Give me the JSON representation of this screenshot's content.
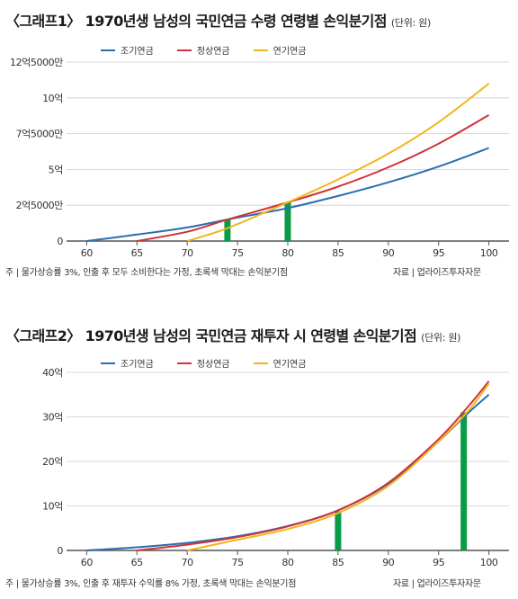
{
  "colors": {
    "early": "#2a6db0",
    "normal": "#d0323a",
    "deferred": "#f2b51c",
    "breakeven": "#0a9b46",
    "axis": "#555555",
    "grid": "#cccccc"
  },
  "chart_data": [
    {
      "type": "line",
      "title_main": "〈그래프1〉 1970년생 남성의 국민연금 수령 연령별 손익분기점",
      "title_unit": "(단위: 원)",
      "legend_position": "top-center",
      "grid": "horizontal",
      "xlim": [
        58,
        102
      ],
      "ylim": [
        0,
        125000
      ],
      "x_ticks": [
        60,
        65,
        70,
        75,
        80,
        85,
        90,
        95,
        100
      ],
      "y_ticks": [
        0,
        25000,
        50000,
        75000,
        100000,
        125000
      ],
      "y_tick_labels": [
        "0",
        "2억5000만",
        "5억",
        "7억5000만",
        "10억",
        "12억5000만"
      ],
      "series": [
        {
          "name": "조기연금",
          "color_key": "early",
          "x": [
            60,
            65,
            70,
            74,
            80,
            85,
            90,
            95,
            100
          ],
          "y": [
            0,
            4500,
            9500,
            15000,
            23000,
            31500,
            41000,
            52000,
            65000
          ]
        },
        {
          "name": "정상연금",
          "color_key": "normal",
          "x": [
            65,
            70,
            74,
            80,
            85,
            90,
            95,
            100
          ],
          "y": [
            0,
            6500,
            15000,
            27000,
            38000,
            51500,
            68000,
            88000
          ]
        },
        {
          "name": "연기연금",
          "color_key": "deferred",
          "x": [
            70,
            74,
            80,
            85,
            90,
            95,
            100
          ],
          "y": [
            0,
            9000,
            27000,
            43000,
            61000,
            83000,
            110000
          ]
        }
      ],
      "breakeven_bars": [
        {
          "x": 74,
          "y": 15000
        },
        {
          "x": 80,
          "y": 27000
        }
      ],
      "note_left": "주 | 물가상승률 3%, 인출 후 모두 소비한다는 가정, 초록색 막대는 손익분기점",
      "note_right": "자료 | 업라이즈투자자문"
    },
    {
      "type": "line",
      "title_main": "〈그래프2〉 1970년생 남성의 국민연금 재투자 시 연령별 손익분기점",
      "title_unit": "(단위: 원)",
      "legend_position": "top-center",
      "grid": "horizontal",
      "xlim": [
        58,
        102
      ],
      "ylim": [
        0,
        400000
      ],
      "x_ticks": [
        60,
        65,
        70,
        75,
        80,
        85,
        90,
        95,
        100
      ],
      "y_ticks": [
        0,
        100000,
        200000,
        300000,
        400000
      ],
      "y_tick_labels": [
        "0",
        "10억",
        "20억",
        "30억",
        "40억"
      ],
      "series": [
        {
          "name": "조기연금",
          "color_key": "early",
          "x": [
            60,
            65,
            70,
            75,
            80,
            85,
            90,
            95,
            98,
            100
          ],
          "y": [
            0,
            7000,
            17000,
            32000,
            55000,
            90000,
            150000,
            245000,
            310000,
            350000
          ]
        },
        {
          "name": "정상연금",
          "color_key": "normal",
          "x": [
            65,
            70,
            75,
            80,
            85,
            90,
            95,
            98,
            100
          ],
          "y": [
            0,
            13000,
            30000,
            54000,
            90000,
            152000,
            250000,
            325000,
            380000
          ]
        },
        {
          "name": "연기연금",
          "color_key": "deferred",
          "x": [
            70,
            75,
            80,
            85,
            90,
            95,
            98,
            100
          ],
          "y": [
            0,
            24000,
            48000,
            84000,
            145000,
            245000,
            315000,
            375000
          ]
        }
      ],
      "breakeven_bars": [
        {
          "x": 85,
          "y": 88000
        },
        {
          "x": 97.5,
          "y": 310000
        }
      ],
      "note_left": "주 | 물가상승률 3%, 인출 후 재투자 수익률 8% 가정, 초록색 막대는 손익분기점",
      "note_right": "자료 | 업라이즈투자자문"
    }
  ]
}
